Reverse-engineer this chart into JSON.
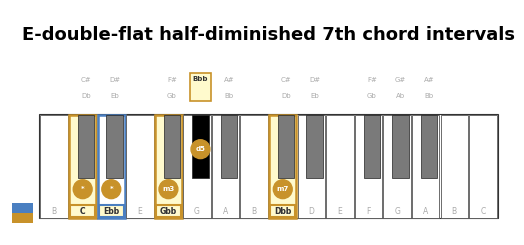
{
  "title": "E-double-flat half-diminished 7th chord intervals",
  "title_fontsize": 13,
  "bg": "#ffffff",
  "sidebar_bg": "#1c1c2e",
  "sidebar_gold": "#c8922a",
  "sidebar_blue": "#4a7fc1",
  "gold": "#c8922a",
  "blue": "#4a7fc1",
  "lyellow": "#fffacd",
  "gray_bk": "#7a7a7a",
  "label_gray": "#aaaaaa",
  "white_key_labels": [
    "B",
    "C",
    "Ebb",
    "E",
    "Gbb",
    "G",
    "A",
    "B",
    "Dbb",
    "D",
    "E",
    "F",
    "G",
    "A",
    "B",
    "C"
  ],
  "black_key_data": [
    {
      "x": 1.62,
      "t1": "C#",
      "t2": "Db",
      "hl": false,
      "nl": ""
    },
    {
      "x": 2.62,
      "t1": "D#",
      "t2": "Eb",
      "hl": false,
      "nl": ""
    },
    {
      "x": 4.62,
      "t1": "F#",
      "t2": "Gb",
      "hl": false,
      "nl": ""
    },
    {
      "x": 5.62,
      "t1": "Bbb",
      "t2": "",
      "hl": true,
      "nl": "d5"
    },
    {
      "x": 6.62,
      "t1": "A#",
      "t2": "Bb",
      "hl": false,
      "nl": ""
    },
    {
      "x": 8.62,
      "t1": "C#",
      "t2": "Db",
      "hl": false,
      "nl": ""
    },
    {
      "x": 9.62,
      "t1": "D#",
      "t2": "Eb",
      "hl": false,
      "nl": ""
    },
    {
      "x": 11.62,
      "t1": "F#",
      "t2": "Gb",
      "hl": false,
      "nl": ""
    },
    {
      "x": 12.62,
      "t1": "G#",
      "t2": "Ab",
      "hl": false,
      "nl": ""
    },
    {
      "x": 13.62,
      "t1": "A#",
      "t2": "Bb",
      "hl": false,
      "nl": ""
    }
  ],
  "white_highlights": [
    {
      "idx": 1,
      "bg": "#fffacd",
      "border": "#c8922a",
      "circle": "*",
      "has_gold_bar": true
    },
    {
      "idx": 2,
      "bg": "#ffffff",
      "border": "#4a7fc1",
      "circle": "*",
      "has_gold_bar": false
    },
    {
      "idx": 4,
      "bg": "#fffacd",
      "border": "#c8922a",
      "circle": "m3",
      "has_gold_bar": false
    },
    {
      "idx": 8,
      "bg": "#fffacd",
      "border": "#c8922a",
      "circle": "m7",
      "has_gold_bar": false
    }
  ],
  "N": 16,
  "WW": 1.0,
  "WH": 3.6,
  "BW": 0.58,
  "BH": 2.2
}
